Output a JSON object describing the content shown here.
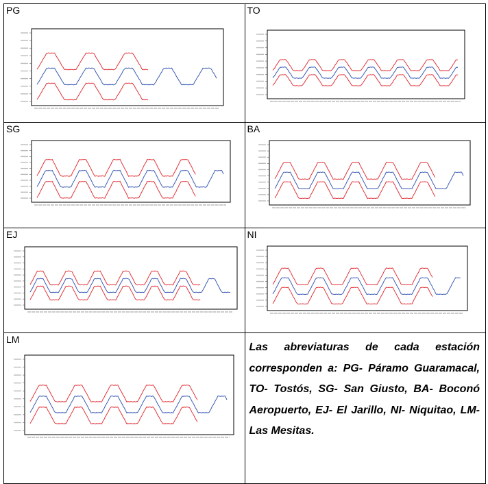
{
  "panels": [
    {
      "id": "PG",
      "label": "PG",
      "band_end": 0.62,
      "ticks": true
    },
    {
      "id": "TO",
      "label": "TO",
      "band_end": 1.0,
      "ticks": true
    },
    {
      "id": "SG",
      "label": "SG",
      "band_end": 0.85,
      "ticks": true
    },
    {
      "id": "BA",
      "label": "BA",
      "band_end": 0.85,
      "ticks": true
    },
    {
      "id": "EJ",
      "label": "EJ",
      "band_end": 0.85,
      "ticks": true
    },
    {
      "id": "NI",
      "label": "NI",
      "band_end": 0.85,
      "ticks": true
    },
    {
      "id": "LM",
      "label": "LM",
      "band_end": 0.85,
      "ticks": true
    }
  ],
  "note": "Las abreviaturas de cada estación corresponden a: PG- Páramo Guaramacal, TO- Tostós, SG- San Giusto, BA- Boconó Aeropuerto, EJ- El Jarillo, NI- Niquitao, LM- Las Mesitas.",
  "colors": {
    "forecast": "#3a5bb5",
    "bounds": "#e0343a",
    "frame": "#000000"
  },
  "chart_data": [
    {
      "type": "line",
      "panel": "PG",
      "series": [
        {
          "role": "forecast",
          "values": [
            0.35,
            0.62,
            0.62,
            0.35,
            0.35,
            0.62,
            0.62,
            0.35,
            0.35,
            0.62,
            0.62,
            0.35,
            0.35,
            0.62,
            0.62,
            0.35,
            0.35,
            0.62,
            0.62,
            0.35
          ]
        },
        {
          "role": "upper",
          "values": [
            0.7,
            0.92,
            0.92,
            0.7
          ]
        },
        {
          "role": "lower",
          "values": [
            0.05,
            0.27,
            0.27,
            0.05
          ]
        }
      ]
    },
    {
      "type": "line",
      "panel": "TO"
    },
    {
      "type": "line",
      "panel": "SG"
    },
    {
      "type": "line",
      "panel": "BA"
    },
    {
      "type": "line",
      "panel": "EJ"
    },
    {
      "type": "line",
      "panel": "NI"
    },
    {
      "type": "line",
      "panel": "LM"
    }
  ]
}
